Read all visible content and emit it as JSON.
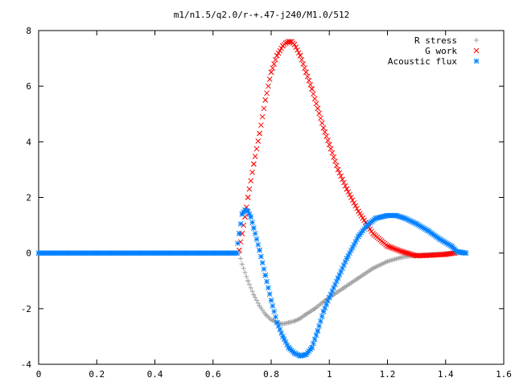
{
  "chart_data": {
    "type": "scatter",
    "title": "m1/n1.5/q2.0/r-+.47-j240/M1.0/512",
    "xlabel": "",
    "ylabel": "",
    "xlim": [
      0,
      1.6
    ],
    "ylim": [
      -4,
      8
    ],
    "xticks": [
      0,
      0.2,
      0.4,
      0.6,
      0.8,
      1,
      1.2,
      1.4,
      1.6
    ],
    "xtick_labels": [
      "0",
      "0.2",
      "0.4",
      "0.6",
      "0.8",
      "1",
      "1.2",
      "1.4",
      "1.6"
    ],
    "yticks": [
      -4,
      -2,
      0,
      2,
      4,
      6,
      8
    ],
    "ytick_labels": [
      "-4",
      "-2",
      "0",
      "2",
      "4",
      "6",
      "8"
    ],
    "grid": false,
    "legend_position": "top-right",
    "series": [
      {
        "name": "R stress",
        "marker": "plus",
        "color": "#a0a0a0",
        "x": [
          0.0,
          0.05,
          0.1,
          0.15,
          0.2,
          0.25,
          0.3,
          0.35,
          0.4,
          0.45,
          0.5,
          0.55,
          0.6,
          0.65,
          0.69,
          0.7,
          0.72,
          0.74,
          0.76,
          0.78,
          0.8,
          0.82,
          0.84,
          0.86,
          0.88,
          0.9,
          0.92,
          0.95,
          0.98,
          1.0,
          1.05,
          1.1,
          1.15,
          1.2,
          1.25,
          1.3,
          1.35,
          1.4,
          1.43,
          1.47
        ],
        "y": [
          0,
          0,
          0,
          0,
          0,
          0,
          0,
          0,
          0,
          0,
          0,
          0,
          0,
          0,
          0,
          -0.4,
          -1.0,
          -1.5,
          -1.9,
          -2.2,
          -2.4,
          -2.5,
          -2.55,
          -2.5,
          -2.45,
          -2.35,
          -2.2,
          -2.0,
          -1.75,
          -1.6,
          -1.25,
          -0.9,
          -0.55,
          -0.3,
          -0.15,
          -0.08,
          -0.05,
          -0.02,
          0,
          0
        ]
      },
      {
        "name": "G work",
        "marker": "cross",
        "color": "#ff0000",
        "x": [
          0.69,
          0.7,
          0.71,
          0.72,
          0.74,
          0.76,
          0.78,
          0.8,
          0.82,
          0.84,
          0.85,
          0.86,
          0.87,
          0.88,
          0.9,
          0.92,
          0.94,
          0.96,
          0.98,
          1.0,
          1.03,
          1.06,
          1.1,
          1.15,
          1.2,
          1.25,
          1.3,
          1.35,
          1.4,
          1.43
        ],
        "y": [
          0.1,
          0.7,
          1.3,
          2.0,
          3.2,
          4.3,
          5.5,
          6.5,
          7.1,
          7.45,
          7.55,
          7.6,
          7.6,
          7.5,
          7.1,
          6.5,
          5.9,
          5.2,
          4.5,
          3.9,
          3.0,
          2.3,
          1.5,
          0.7,
          0.25,
          0.05,
          -0.1,
          -0.08,
          -0.05,
          0
        ]
      },
      {
        "name": "Acoustic flux",
        "marker": "star",
        "color": "#0080ff",
        "x": [
          0.0,
          0.05,
          0.1,
          0.15,
          0.2,
          0.25,
          0.3,
          0.35,
          0.4,
          0.45,
          0.5,
          0.55,
          0.6,
          0.65,
          0.68,
          0.69,
          0.7,
          0.71,
          0.72,
          0.73,
          0.74,
          0.76,
          0.78,
          0.8,
          0.82,
          0.84,
          0.86,
          0.88,
          0.9,
          0.92,
          0.94,
          0.96,
          0.98,
          1.0,
          1.03,
          1.06,
          1.1,
          1.13,
          1.16,
          1.2,
          1.23,
          1.26,
          1.3,
          1.34,
          1.38,
          1.42,
          1.44,
          1.47
        ],
        "y": [
          0,
          0,
          0,
          0,
          0,
          0,
          0,
          0,
          0,
          0,
          0,
          0,
          0,
          0,
          0,
          0.7,
          1.4,
          1.55,
          1.5,
          1.3,
          0.9,
          0.1,
          -0.8,
          -1.7,
          -2.5,
          -3.0,
          -3.4,
          -3.6,
          -3.7,
          -3.65,
          -3.4,
          -2.8,
          -2.1,
          -1.6,
          -0.9,
          -0.2,
          0.6,
          1.0,
          1.25,
          1.35,
          1.35,
          1.25,
          1.05,
          0.8,
          0.5,
          0.25,
          0.05,
          0
        ]
      }
    ]
  }
}
